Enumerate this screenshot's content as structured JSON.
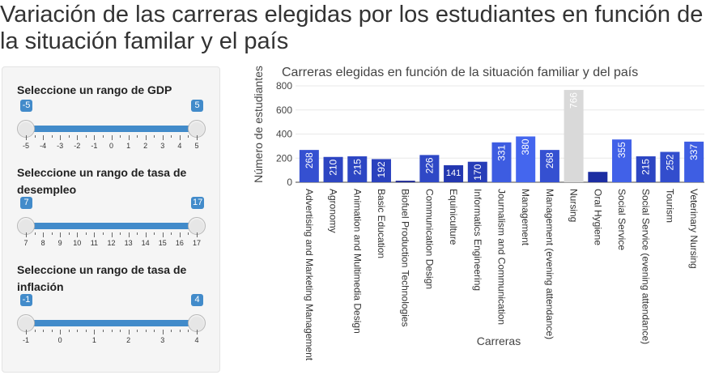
{
  "page": {
    "title": "Variación de las carreras elegidas por los estudiantes en función de la situación familar y el país"
  },
  "sidebar": {
    "sliders": [
      {
        "label": "Seleccione un rango de GDP",
        "min": -5,
        "max": 5,
        "from": -5,
        "to": 5,
        "from_label": "-5",
        "to_label": "5",
        "ticks": [
          "-5",
          "-4",
          "-3",
          "-2",
          "-1",
          "0",
          "1",
          "2",
          "3",
          "4",
          "5"
        ]
      },
      {
        "label": "Seleccione un rango de tasa de desempleo",
        "min": 7,
        "max": 17,
        "from": 7,
        "to": 17,
        "from_label": "7",
        "to_label": "17",
        "ticks": [
          "7",
          "8",
          "9",
          "10",
          "11",
          "12",
          "13",
          "14",
          "15",
          "16",
          "17"
        ]
      },
      {
        "label": "Seleccione un rango de tasa de inflación",
        "min": -1,
        "max": 4,
        "from": -1,
        "to": 4,
        "from_label": "-1",
        "to_label": "4",
        "ticks": [
          "-1",
          "0",
          "1",
          "2",
          "3",
          "4"
        ]
      }
    ],
    "accent_color": "#428bca"
  },
  "chart_data": {
    "type": "bar",
    "title": "Carreras elegidas en función de la situación familiar y del país",
    "xlabel": "Carreras",
    "ylabel": "Número de estudiantes",
    "ylim": [
      0,
      800
    ],
    "yticks": [
      "0",
      "200",
      "400",
      "600",
      "800"
    ],
    "grid": true,
    "categories": [
      "Advertising and Marketing Management",
      "Agronomy",
      "Animation and Multimedia Design",
      "Basic Education",
      "Biofuel Production Technologies",
      "Communication Design",
      "Equiniculture",
      "Informatics Engineering",
      "Journalism and Communication",
      "Management",
      "Management (evening attendance)",
      "Nursing",
      "Oral Hygiene",
      "Social Service",
      "Social Service (evening attendance)",
      "Tourism",
      "Veterinary Nursing"
    ],
    "values": [
      268,
      210,
      215,
      192,
      12,
      226,
      141,
      170,
      331,
      380,
      268,
      766,
      86,
      355,
      215,
      252,
      337
    ],
    "data_labels": [
      "268",
      "210",
      "215",
      "192",
      "",
      "226",
      "141",
      "170",
      "331",
      "380",
      "268",
      "766",
      "",
      "355",
      "215",
      "252",
      "337"
    ],
    "color_low": "#101c8c",
    "color_high": "#4466ee",
    "highlight_color": "#d9d9d9",
    "highlight_index": 11
  }
}
